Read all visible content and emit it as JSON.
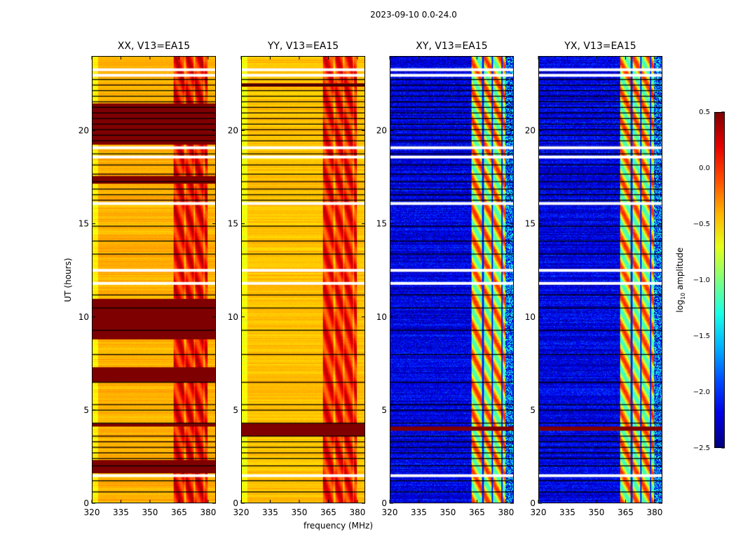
{
  "chart_data": {
    "type": "heatmap",
    "suptitle": "2023-09-10 0.0-24.0",
    "xlabel": "frequency (MHz)",
    "ylabel": "UT (hours)",
    "xlim": [
      320,
      384
    ],
    "ylim": [
      0,
      24
    ],
    "xticks": [
      320,
      335,
      350,
      365,
      380
    ],
    "yticks": [
      0,
      5,
      10,
      15,
      20
    ],
    "colorbar": {
      "label": "log10 amplitude",
      "label_main": "log",
      "label_sub": "10",
      "label_rest": " amplitude",
      "range": [
        -2.5,
        0.5
      ],
      "ticks": [
        "0.5",
        "0.0",
        "−0.5",
        "−1.0",
        "−1.5",
        "−2.0",
        "−2.5"
      ],
      "colormap": "jet"
    },
    "panels": [
      {
        "title": "XX, V13=EA15",
        "kind": "parallel",
        "base": -0.4,
        "band": [
          362,
          380
        ],
        "band_level": 0.1,
        "saturated_hours": [
          [
            1.6,
            2.3
          ],
          [
            4.1,
            4.3
          ],
          [
            6.5,
            7.3
          ],
          [
            8.8,
            11.0
          ],
          [
            17.2,
            17.6
          ],
          [
            19.3,
            21.5
          ]
        ]
      },
      {
        "title": "YY, V13=EA15",
        "kind": "parallel",
        "base": -0.45,
        "band": [
          362,
          380
        ],
        "band_level": 0.05,
        "saturated_hours": [
          [
            3.6,
            4.3
          ],
          [
            22.4,
            22.6
          ]
        ]
      },
      {
        "title": "XY, V13=EA15",
        "kind": "cross",
        "base": -2.2,
        "band": [
          362,
          380
        ],
        "band_level": -0.6,
        "saturated_hours": [
          [
            3.9,
            4.1
          ]
        ]
      },
      {
        "title": "YX, V13=EA15",
        "kind": "cross",
        "base": -2.2,
        "band": [
          362,
          380
        ],
        "band_level": -0.6,
        "saturated_hours": [
          [
            3.9,
            4.1
          ]
        ]
      }
    ],
    "flagged_hours": [
      1.45,
      11.8,
      12.5,
      23.0,
      23.3,
      18.6,
      19.1,
      16.1
    ],
    "line_hours": [
      0.6,
      1.2,
      2.0,
      2.4,
      2.7,
      3.0,
      3.3,
      3.6,
      4.3,
      5.0,
      5.3,
      6.5,
      8.0,
      9.3,
      10.5,
      11.2,
      13.4,
      14.1,
      14.9,
      16.3,
      16.6,
      16.9,
      17.3,
      17.7,
      18.2,
      18.8,
      19.5,
      19.8,
      20.1,
      20.4,
      20.7,
      21.0,
      21.3,
      21.6,
      21.9,
      22.2,
      22.5,
      22.8
    ]
  }
}
